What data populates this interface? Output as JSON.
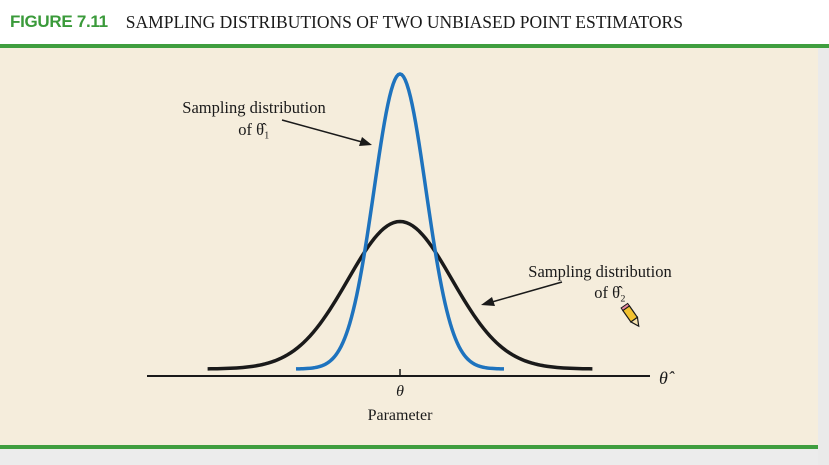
{
  "header": {
    "figure_number": "FIGURE 7.11",
    "title": "SAMPLING DISTRIBUTIONS OF TWO UNBIASED POINT ESTIMATORS"
  },
  "colors": {
    "accent_green": "#3f9e3f",
    "panel_background": "#f5eddc",
    "curve_theta1": "#1e73be",
    "curve_theta2": "#1a1a1a"
  },
  "chart_data": {
    "type": "line",
    "title": "SAMPLING DISTRIBUTIONS OF TWO UNBIASED POINT ESTIMATORS",
    "x_axis_symbol": "θ̂",
    "x_tick_label": "θ",
    "x_tick_caption": "Parameter",
    "series": [
      {
        "id": "theta1",
        "label_line1": "Sampling distribution",
        "label_line2": "of θ̂₁",
        "mean": 0,
        "std_dev": 1,
        "color": "#1e73be"
      },
      {
        "id": "theta2",
        "label_line1": "Sampling distribution",
        "label_line2": "of θ̂₂",
        "mean": 0,
        "std_dev": 2,
        "color": "#1a1a1a"
      }
    ]
  }
}
